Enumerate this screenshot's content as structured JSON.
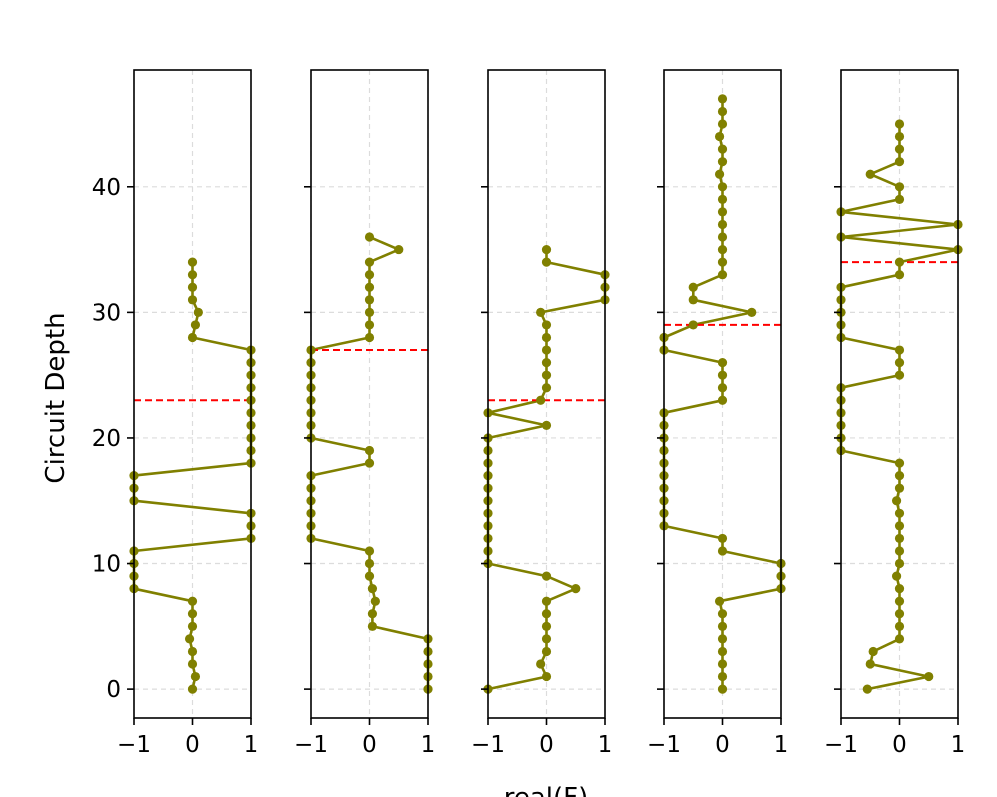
{
  "chart_data": {
    "type": "line",
    "ylabel": "Circuit Depth",
    "xlabel": "real(F)",
    "xlim": [
      -1,
      1
    ],
    "ylim": [
      -2.3,
      49.3
    ],
    "xticks": [
      -1,
      0,
      1
    ],
    "xtick_labels": [
      "−1",
      "0",
      "1"
    ],
    "yticks": [
      0,
      10,
      20,
      30,
      40
    ],
    "ytick_labels": [
      "0",
      "10",
      "20",
      "30",
      "40"
    ],
    "grid": true,
    "line_color": "#808000",
    "threshold_color": "#ff0000",
    "grid_color": "#dcdcdc",
    "panels": [
      {
        "name": "panel-1",
        "threshold": 23,
        "x": [
          0,
          0.05,
          0,
          0,
          -0.05,
          0,
          0,
          0,
          -1,
          -1,
          -1,
          -1,
          1,
          1,
          1,
          -1,
          -1,
          -1,
          1,
          1,
          1,
          1,
          1,
          1,
          1,
          1,
          1,
          1,
          0,
          0.05,
          0.1,
          0,
          0,
          0,
          0
        ],
        "y": [
          0,
          1,
          2,
          3,
          4,
          5,
          6,
          7,
          8,
          9,
          10,
          11,
          12,
          13,
          14,
          15,
          16,
          17,
          18,
          19,
          20,
          21,
          22,
          23,
          24,
          25,
          26,
          27,
          28,
          29,
          30,
          31,
          32,
          33,
          34
        ]
      },
      {
        "name": "panel-2",
        "threshold": 27,
        "x": [
          1,
          1,
          1,
          1,
          1,
          0.05,
          0.05,
          0.1,
          0.05,
          0,
          0,
          0,
          -1,
          -1,
          -1,
          -1,
          -1,
          -1,
          0,
          0,
          -1,
          -1,
          -1,
          -1,
          -1,
          -1,
          -1,
          -1,
          0,
          0,
          0,
          0,
          0,
          0,
          0,
          0.5,
          0
        ],
        "y": [
          0,
          1,
          2,
          3,
          4,
          5,
          6,
          7,
          8,
          9,
          10,
          11,
          12,
          13,
          14,
          15,
          16,
          17,
          18,
          19,
          20,
          21,
          22,
          23,
          24,
          25,
          26,
          27,
          28,
          29,
          30,
          31,
          32,
          33,
          34,
          35,
          36
        ]
      },
      {
        "name": "panel-3",
        "threshold": 23,
        "x": [
          -1,
          0,
          -0.1,
          0,
          0,
          0,
          0,
          0,
          0.5,
          0,
          -1,
          -1,
          -1,
          -1,
          -1,
          -1,
          -1,
          -1,
          -1,
          -1,
          -1,
          0,
          -1,
          -0.1,
          0,
          0,
          0,
          0,
          0,
          0,
          -0.1,
          1,
          1,
          1,
          0,
          0
        ],
        "y": [
          0,
          1,
          2,
          3,
          4,
          5,
          6,
          7,
          8,
          9,
          10,
          11,
          12,
          13,
          14,
          15,
          16,
          17,
          18,
          19,
          20,
          21,
          22,
          23,
          24,
          25,
          26,
          27,
          28,
          29,
          30,
          31,
          32,
          33,
          34,
          35
        ]
      },
      {
        "name": "panel-4",
        "threshold": 29,
        "x": [
          0,
          0,
          0,
          0,
          0,
          0,
          0,
          -0.05,
          1,
          1,
          1,
          0,
          0,
          -1,
          -1,
          -1,
          -1,
          -1,
          -1,
          -1,
          -1,
          -1,
          -1,
          0,
          0,
          0,
          0,
          -1,
          -1,
          -0.5,
          0.5,
          -0.5,
          -0.5,
          0,
          0,
          0,
          0,
          0,
          0,
          0,
          0,
          -0.05,
          0,
          0,
          -0.05,
          0,
          0,
          0
        ],
        "y": [
          0,
          1,
          2,
          3,
          4,
          5,
          6,
          7,
          8,
          9,
          10,
          11,
          12,
          13,
          14,
          15,
          16,
          17,
          18,
          19,
          20,
          21,
          22,
          23,
          24,
          25,
          26,
          27,
          28,
          29,
          30,
          31,
          32,
          33,
          34,
          35,
          36,
          37,
          38,
          39,
          40,
          41,
          42,
          43,
          44,
          45,
          46,
          47
        ]
      },
      {
        "name": "panel-5",
        "threshold": 34,
        "x": [
          -0.55,
          0.5,
          -0.5,
          -0.45,
          0,
          0,
          0,
          0,
          0,
          -0.05,
          0,
          0,
          0,
          0,
          0,
          -0.05,
          0,
          0,
          0,
          -1,
          -1,
          -1,
          -1,
          -1,
          -1,
          0,
          0,
          0,
          -1,
          -1,
          -1,
          -1,
          -1,
          0,
          0,
          1,
          -1,
          1,
          -1,
          0,
          0,
          -0.5,
          0,
          0,
          0,
          0
        ],
        "y": [
          0,
          1,
          2,
          3,
          4,
          5,
          6,
          7,
          8,
          9,
          10,
          11,
          12,
          13,
          14,
          15,
          16,
          17,
          18,
          19,
          20,
          21,
          22,
          23,
          24,
          25,
          26,
          27,
          28,
          29,
          30,
          31,
          32,
          33,
          34,
          35,
          36,
          37,
          38,
          39,
          40,
          41,
          42,
          43,
          44,
          45
        ]
      }
    ]
  }
}
